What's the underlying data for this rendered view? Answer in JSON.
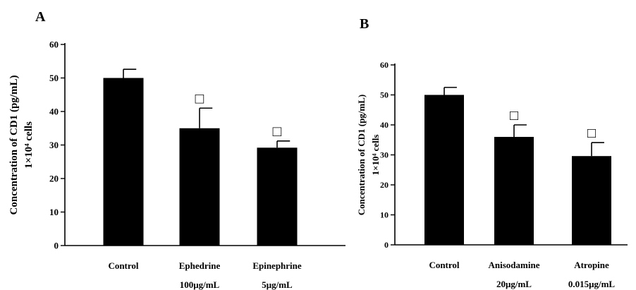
{
  "chart_data": [
    {
      "panel": "A",
      "type": "bar",
      "ylabel": "Concentration of CD1 (pg/mL)",
      "ylabel2": "1×10⁴ cells",
      "ylim": [
        0,
        60
      ],
      "yticks": [
        0,
        10,
        20,
        30,
        40,
        50,
        60
      ],
      "categories": [
        {
          "name": "Control",
          "sub": ""
        },
        {
          "name": "Ephedrine",
          "sub": "100μg/mL"
        },
        {
          "name": "Epinephrine",
          "sub": "5μg/mL"
        }
      ],
      "values": [
        50,
        35,
        29.2
      ],
      "errors": [
        2.6,
        6,
        2
      ],
      "markers": [
        "",
        "□",
        "□"
      ],
      "bar_color": "#000000"
    },
    {
      "panel": "B",
      "type": "bar",
      "ylabel": "Concentration of CD1 (pg/mL)",
      "ylabel2": "1×10⁴ cells",
      "ylim": [
        0,
        60
      ],
      "yticks": [
        0,
        10,
        20,
        30,
        40,
        50,
        60
      ],
      "categories": [
        {
          "name": "Control",
          "sub": ""
        },
        {
          "name": "Anisodamine",
          "sub": "20μg/mL"
        },
        {
          "name": "Atropine",
          "sub": "0.015μg/mL"
        }
      ],
      "values": [
        50,
        36,
        29.6
      ],
      "errors": [
        2.5,
        4,
        4.5
      ],
      "markers": [
        "",
        "□",
        "□"
      ],
      "bar_color": "#000000"
    }
  ]
}
